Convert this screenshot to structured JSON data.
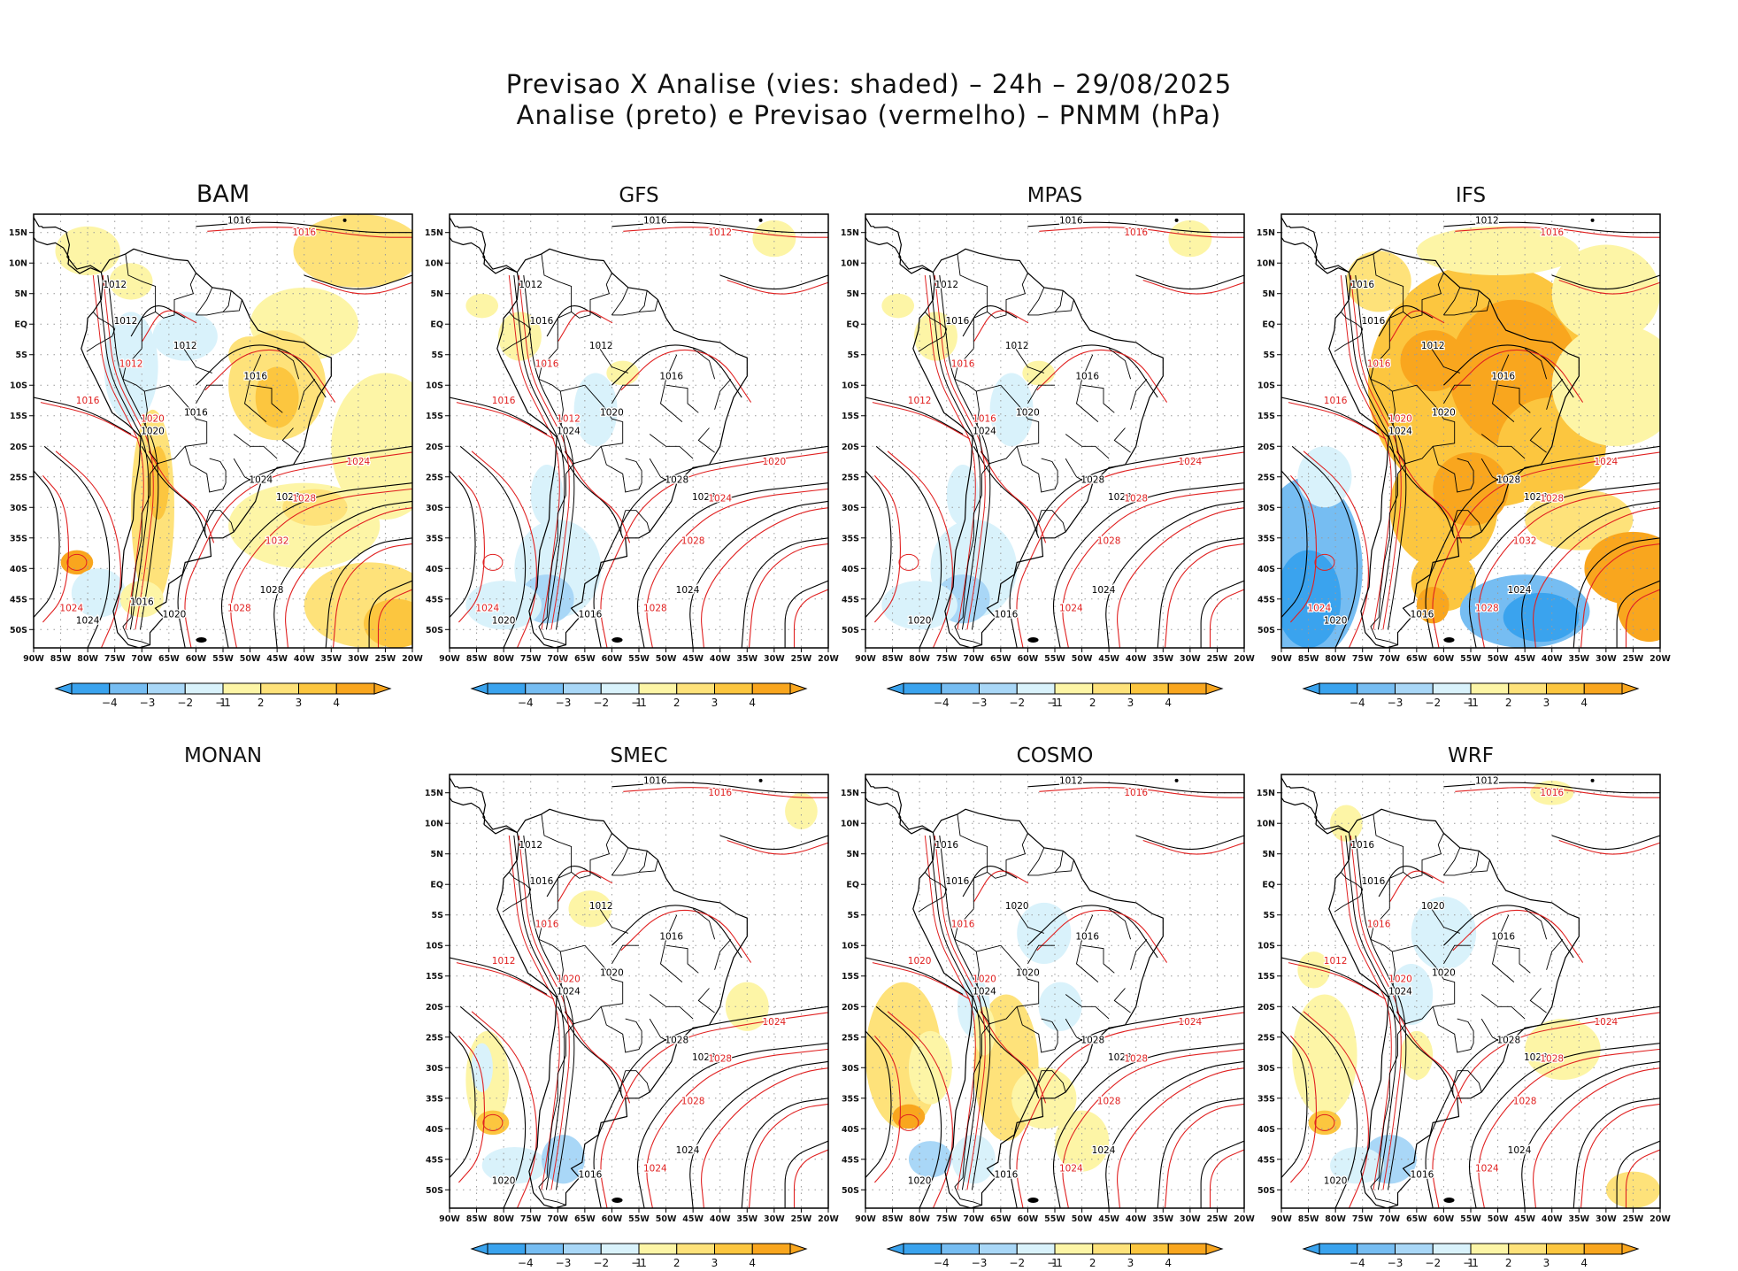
{
  "figure": {
    "title_line1": "Previsao X Analise (vies: shaded) – 24h – 29/08/2025",
    "title_line2": "Analise (preto) e Previsao (vermelho) – PNMM (hPa)"
  },
  "colors": {
    "analysis_contour": "#000000",
    "forecast_contour": "#e02020",
    "bias_neg4": "#3aa3ee",
    "bias_neg3": "#76bdf2",
    "bias_neg2": "#a9d7f7",
    "bias_neg1": "#d9f2fb",
    "bias_zero": "#ffffff",
    "bias_pos1": "#fdf5a6",
    "bias_pos2": "#fee27a",
    "bias_pos3": "#fcc63f",
    "bias_pos4": "#f9a61e",
    "land_outline": "#000000",
    "grid_dots": "#9a9a9a"
  },
  "chart_data": {
    "type": "map-panels",
    "axes": {
      "x_ticks": [
        "90W",
        "85W",
        "80W",
        "75W",
        "70W",
        "65W",
        "60W",
        "55W",
        "50W",
        "45W",
        "40W",
        "35W",
        "30W",
        "25W",
        "20W"
      ],
      "y_ticks": [
        "15N",
        "10N",
        "5N",
        "EQ",
        "5S",
        "10S",
        "15S",
        "20S",
        "25S",
        "30S",
        "35S",
        "40S",
        "45S",
        "50S"
      ],
      "lon_range": [
        -90,
        -20
      ],
      "lat_range": [
        -53,
        18
      ]
    },
    "colorbar": {
      "labels": [
        "−4",
        "−3",
        "−2",
        "−1",
        "1",
        "2",
        "3",
        "4"
      ],
      "levels": [
        -4,
        -3,
        -2,
        -1,
        1,
        2,
        3,
        4
      ]
    },
    "panels": [
      {
        "name": "BAM",
        "has_map": true,
        "bias_scheme": "bam",
        "analysis_labels": [
          "1016",
          "1012",
          "1012",
          "1012",
          "1016",
          "1016",
          "1020",
          "1024",
          "1028",
          "1028",
          "1024",
          "1020",
          "1016"
        ],
        "forecast_labels": [
          "1016",
          "1012",
          "1016",
          "1020",
          "1024",
          "1028",
          "1032",
          "1028",
          "1024"
        ]
      },
      {
        "name": "GFS",
        "has_map": true,
        "bias_scheme": "neutral",
        "analysis_labels": [
          "1016",
          "1012",
          "1016",
          "1012",
          "1016",
          "1020",
          "1024",
          "1028",
          "1028",
          "1024",
          "1020",
          "1016"
        ],
        "forecast_labels": [
          "1012",
          "1016",
          "1016",
          "1012",
          "1020",
          "1024",
          "1028",
          "1028",
          "1024"
        ]
      },
      {
        "name": "MPAS",
        "has_map": true,
        "bias_scheme": "neutral",
        "analysis_labels": [
          "1016",
          "1012",
          "1016",
          "1012",
          "1016",
          "1020",
          "1024",
          "1028",
          "1028",
          "1024",
          "1020",
          "1016"
        ],
        "forecast_labels": [
          "1016",
          "1016",
          "1012",
          "1016",
          "1024",
          "1028",
          "1028",
          "1024"
        ]
      },
      {
        "name": "IFS",
        "has_map": true,
        "bias_scheme": "ifs",
        "analysis_labels": [
          "1012",
          "1016",
          "1016",
          "1012",
          "1016",
          "1020",
          "1024",
          "1028",
          "1028",
          "1024",
          "1020",
          "1016"
        ],
        "forecast_labels": [
          "1016",
          "1016",
          "1016",
          "1020",
          "1024",
          "1028",
          "1032",
          "1028",
          "1024"
        ]
      },
      {
        "name": "MONAN",
        "has_map": false,
        "bias_scheme": "none",
        "analysis_labels": [],
        "forecast_labels": []
      },
      {
        "name": "SMEC",
        "has_map": true,
        "bias_scheme": "smec",
        "analysis_labels": [
          "1016",
          "1012",
          "1016",
          "1012",
          "1016",
          "1020",
          "1024",
          "1028",
          "1028",
          "1024",
          "1020",
          "1016"
        ],
        "forecast_labels": [
          "1016",
          "1016",
          "1012",
          "1020",
          "1024",
          "1028",
          "1028",
          "1024"
        ]
      },
      {
        "name": "COSMO",
        "has_map": true,
        "bias_scheme": "cosmo",
        "analysis_labels": [
          "1012",
          "1016",
          "1016",
          "1020",
          "1016",
          "1020",
          "1024",
          "1028",
          "1028",
          "1024",
          "1020",
          "1016"
        ],
        "forecast_labels": [
          "1016",
          "1016",
          "1020",
          "1020",
          "1024",
          "1028",
          "1028",
          "1024"
        ]
      },
      {
        "name": "WRF",
        "has_map": true,
        "bias_scheme": "wrf",
        "analysis_labels": [
          "1012",
          "1016",
          "1016",
          "1020",
          "1016",
          "1020",
          "1024",
          "1028",
          "1028",
          "1024",
          "1020",
          "1016"
        ],
        "forecast_labels": [
          "1016",
          "1016",
          "1012",
          "1020",
          "1024",
          "1028",
          "1028",
          "1024"
        ]
      }
    ]
  }
}
